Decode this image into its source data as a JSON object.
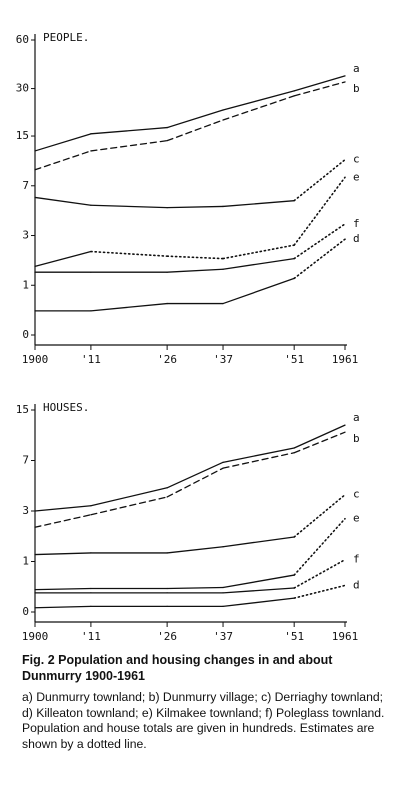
{
  "chart_data": [
    {
      "type": "line",
      "title": "PEOPLE.",
      "scale": "log1p",
      "x": [
        1900,
        1911,
        1926,
        1937,
        1951,
        1961
      ],
      "xlim": [
        1900,
        1961
      ],
      "xticks": [
        {
          "value": 1900,
          "label": "1900"
        },
        {
          "value": 1911,
          "label": "'11"
        },
        {
          "value": 1926,
          "label": "'26"
        },
        {
          "value": 1937,
          "label": "'37"
        },
        {
          "value": 1951,
          "label": "'51"
        },
        {
          "value": 1961,
          "label": "1961"
        }
      ],
      "ylim": [
        0,
        60
      ],
      "yticks": [
        60,
        30,
        15,
        7,
        3,
        1,
        0
      ],
      "series": [
        {
          "name": "a",
          "color": "#111111",
          "dash": [
            "solid",
            "solid",
            "solid",
            "solid",
            "solid"
          ],
          "values": [
            12,
            15.5,
            17,
            22,
            29,
            36
          ]
        },
        {
          "name": "b",
          "color": "#111111",
          "dash": [
            "dashed",
            "dashed",
            "dashed",
            "dashed",
            "dashed"
          ],
          "values": [
            9,
            12,
            14,
            19,
            27,
            33
          ]
        },
        {
          "name": "c",
          "color": "#111111",
          "dash": [
            "solid",
            "solid",
            "solid",
            "solid",
            "dotted"
          ],
          "values": [
            5.8,
            5.1,
            4.9,
            5,
            5.5,
            10.5
          ]
        },
        {
          "name": "e",
          "color": "#111111",
          "dash": [
            "solid",
            "dotted",
            "dotted",
            "dotted",
            "dotted"
          ],
          "values": [
            1.6,
            2.2,
            2,
            1.9,
            2.5,
            8
          ]
        },
        {
          "name": "f",
          "color": "#111111",
          "dash": [
            "solid",
            "solid",
            "solid",
            "solid",
            "dotted"
          ],
          "values": [
            1.4,
            1.4,
            1.4,
            1.5,
            1.9,
            3.7
          ]
        },
        {
          "name": "d",
          "color": "#111111",
          "dash": [
            "solid",
            "solid",
            "solid",
            "solid",
            "dotted"
          ],
          "values": [
            0.4,
            0.4,
            0.55,
            0.55,
            1.2,
            2.8
          ]
        }
      ]
    },
    {
      "type": "line",
      "title": "HOUSES.",
      "scale": "log1p",
      "x": [
        1900,
        1911,
        1926,
        1937,
        1951,
        1961
      ],
      "xlim": [
        1900,
        1961
      ],
      "xticks": [
        {
          "value": 1900,
          "label": "1900"
        },
        {
          "value": 1911,
          "label": "'11"
        },
        {
          "value": 1926,
          "label": "'26"
        },
        {
          "value": 1937,
          "label": "'37"
        },
        {
          "value": 1951,
          "label": "'51"
        },
        {
          "value": 1961,
          "label": "1961"
        }
      ],
      "ylim": [
        0,
        15
      ],
      "yticks": [
        15,
        7,
        3,
        1,
        0
      ],
      "series": [
        {
          "name": "a",
          "color": "#111111",
          "dash": [
            "solid",
            "solid",
            "solid",
            "solid",
            "solid"
          ],
          "values": [
            3,
            3.3,
            4.5,
            6.8,
            8.5,
            12
          ]
        },
        {
          "name": "b",
          "color": "#111111",
          "dash": [
            "dashed",
            "dashed",
            "dashed",
            "dashed",
            "dashed"
          ],
          "values": [
            2.2,
            2.8,
            3.85,
            6.2,
            7.9,
            10.8
          ]
        },
        {
          "name": "c",
          "color": "#111111",
          "dash": [
            "solid",
            "solid",
            "solid",
            "solid",
            "dotted"
          ],
          "values": [
            1.2,
            1.25,
            1.25,
            1.45,
            1.8,
            4
          ]
        },
        {
          "name": "e",
          "color": "#111111",
          "dash": [
            "solid",
            "solid",
            "solid",
            "solid",
            "dotted"
          ],
          "values": [
            0.36,
            0.38,
            0.38,
            0.4,
            0.66,
            2.6
          ]
        },
        {
          "name": "f",
          "color": "#111111",
          "dash": [
            "solid",
            "solid",
            "solid",
            "solid",
            "dotted"
          ],
          "values": [
            0.3,
            0.3,
            0.3,
            0.3,
            0.39,
            1.05
          ]
        },
        {
          "name": "d",
          "color": "#111111",
          "dash": [
            "solid",
            "solid",
            "solid",
            "solid",
            "dotted"
          ],
          "values": [
            0.06,
            0.08,
            0.08,
            0.08,
            0.21,
            0.44
          ]
        }
      ]
    }
  ],
  "caption": {
    "title": "Fig. 2 Population and housing changes in and about Dunmurry 1900-1961",
    "text": "a) Dunmurry townland; b) Dunmurry village; c) Derriaghy townland; d) Killeaton townland; e) Kilmakee townland; f) Poleglass townland. Population and house totals are given in hundreds. Estimates are shown by a dotted line."
  }
}
